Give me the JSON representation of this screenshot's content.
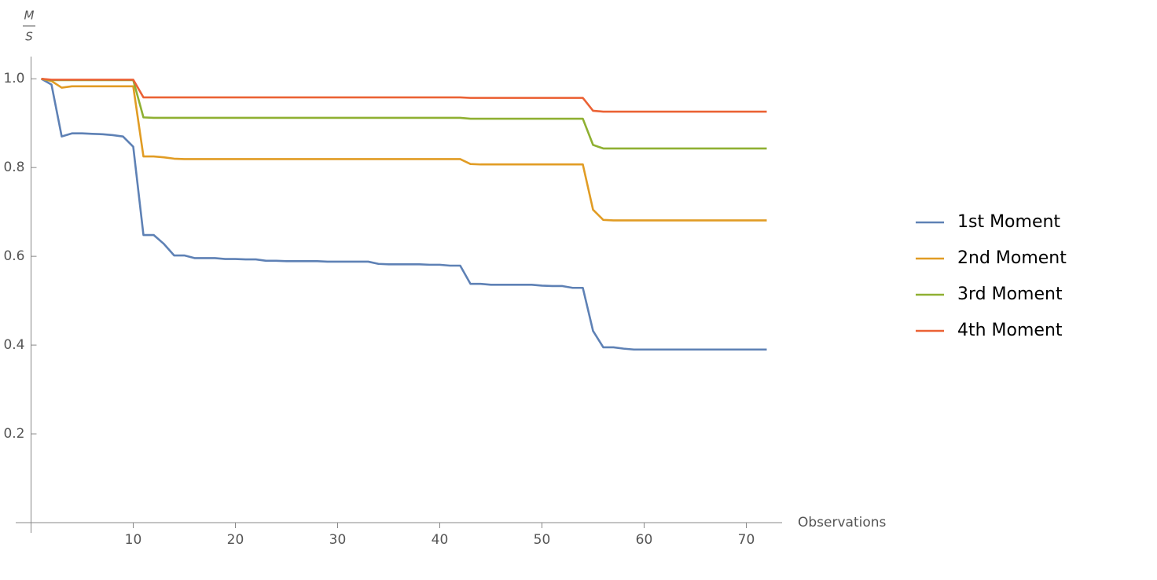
{
  "chart_data": {
    "type": "line",
    "y_label": {
      "numerator": "M",
      "denominator": "S"
    },
    "x_label": "Observations",
    "x": [
      1,
      2,
      3,
      4,
      5,
      6,
      7,
      8,
      9,
      10,
      11,
      12,
      13,
      14,
      15,
      16,
      17,
      18,
      19,
      20,
      21,
      22,
      23,
      24,
      25,
      26,
      27,
      28,
      29,
      30,
      31,
      32,
      33,
      34,
      35,
      36,
      37,
      38,
      39,
      40,
      41,
      42,
      43,
      44,
      45,
      46,
      47,
      48,
      49,
      50,
      51,
      52,
      53,
      54,
      55,
      56,
      57,
      58,
      59,
      60,
      61,
      62,
      63,
      64,
      65,
      66,
      67,
      68,
      69,
      70,
      71,
      72
    ],
    "series": [
      {
        "name": "1st Moment",
        "color": "#5e81b5",
        "values": [
          1.0,
          0.987,
          0.87,
          0.877,
          0.877,
          0.876,
          0.875,
          0.873,
          0.87,
          0.847,
          0.648,
          0.648,
          0.628,
          0.602,
          0.602,
          0.596,
          0.596,
          0.596,
          0.594,
          0.594,
          0.593,
          0.593,
          0.59,
          0.59,
          0.589,
          0.589,
          0.589,
          0.589,
          0.588,
          0.588,
          0.588,
          0.588,
          0.588,
          0.583,
          0.582,
          0.582,
          0.582,
          0.582,
          0.581,
          0.581,
          0.579,
          0.579,
          0.538,
          0.538,
          0.536,
          0.536,
          0.536,
          0.536,
          0.536,
          0.534,
          0.533,
          0.533,
          0.529,
          0.529,
          0.432,
          0.395,
          0.395,
          0.392,
          0.39,
          0.39,
          0.39,
          0.39,
          0.39,
          0.39,
          0.39,
          0.39,
          0.39,
          0.39,
          0.39,
          0.39,
          0.39,
          0.39
        ]
      },
      {
        "name": "2nd Moment",
        "color": "#e19c24",
        "values": [
          1.0,
          0.995,
          0.98,
          0.983,
          0.983,
          0.983,
          0.983,
          0.983,
          0.983,
          0.983,
          0.825,
          0.825,
          0.823,
          0.82,
          0.819,
          0.819,
          0.819,
          0.819,
          0.819,
          0.819,
          0.819,
          0.819,
          0.819,
          0.819,
          0.819,
          0.819,
          0.819,
          0.819,
          0.819,
          0.819,
          0.819,
          0.819,
          0.819,
          0.819,
          0.819,
          0.819,
          0.819,
          0.819,
          0.819,
          0.819,
          0.819,
          0.819,
          0.808,
          0.807,
          0.807,
          0.807,
          0.807,
          0.807,
          0.807,
          0.807,
          0.807,
          0.807,
          0.807,
          0.807,
          0.705,
          0.682,
          0.681,
          0.681,
          0.681,
          0.681,
          0.681,
          0.681,
          0.681,
          0.681,
          0.681,
          0.681,
          0.681,
          0.681,
          0.681,
          0.681,
          0.681,
          0.681
        ]
      },
      {
        "name": "3rd Moment",
        "color": "#8fb032",
        "values": [
          1.0,
          0.997,
          0.997,
          0.997,
          0.997,
          0.997,
          0.997,
          0.997,
          0.997,
          0.997,
          0.913,
          0.912,
          0.912,
          0.912,
          0.912,
          0.912,
          0.912,
          0.912,
          0.912,
          0.912,
          0.912,
          0.912,
          0.912,
          0.912,
          0.912,
          0.912,
          0.912,
          0.912,
          0.912,
          0.912,
          0.912,
          0.912,
          0.912,
          0.912,
          0.912,
          0.912,
          0.912,
          0.912,
          0.912,
          0.912,
          0.912,
          0.912,
          0.91,
          0.91,
          0.91,
          0.91,
          0.91,
          0.91,
          0.91,
          0.91,
          0.91,
          0.91,
          0.91,
          0.91,
          0.851,
          0.843,
          0.843,
          0.843,
          0.843,
          0.843,
          0.843,
          0.843,
          0.843,
          0.843,
          0.843,
          0.843,
          0.843,
          0.843,
          0.843,
          0.843,
          0.843,
          0.843
        ]
      },
      {
        "name": "4th Moment",
        "color": "#eb6235",
        "values": [
          1.0,
          0.998,
          0.998,
          0.998,
          0.998,
          0.998,
          0.998,
          0.998,
          0.998,
          0.998,
          0.958,
          0.958,
          0.958,
          0.958,
          0.958,
          0.958,
          0.958,
          0.958,
          0.958,
          0.958,
          0.958,
          0.958,
          0.958,
          0.958,
          0.958,
          0.958,
          0.958,
          0.958,
          0.958,
          0.958,
          0.958,
          0.958,
          0.958,
          0.958,
          0.958,
          0.958,
          0.958,
          0.958,
          0.958,
          0.958,
          0.958,
          0.958,
          0.957,
          0.957,
          0.957,
          0.957,
          0.957,
          0.957,
          0.957,
          0.957,
          0.957,
          0.957,
          0.957,
          0.957,
          0.928,
          0.926,
          0.926,
          0.926,
          0.926,
          0.926,
          0.926,
          0.926,
          0.926,
          0.926,
          0.926,
          0.926,
          0.926,
          0.926,
          0.926,
          0.926,
          0.926,
          0.926
        ]
      }
    ],
    "xlim": [
      -1.5,
      73.5
    ],
    "ylim": [
      0,
      1.05
    ],
    "xticks": [
      10,
      20,
      30,
      40,
      50,
      60,
      70
    ],
    "yticks": [
      0.2,
      0.4,
      0.6,
      0.8,
      {
        "value": 1,
        "label": "1.0"
      }
    ],
    "legend": "right"
  }
}
